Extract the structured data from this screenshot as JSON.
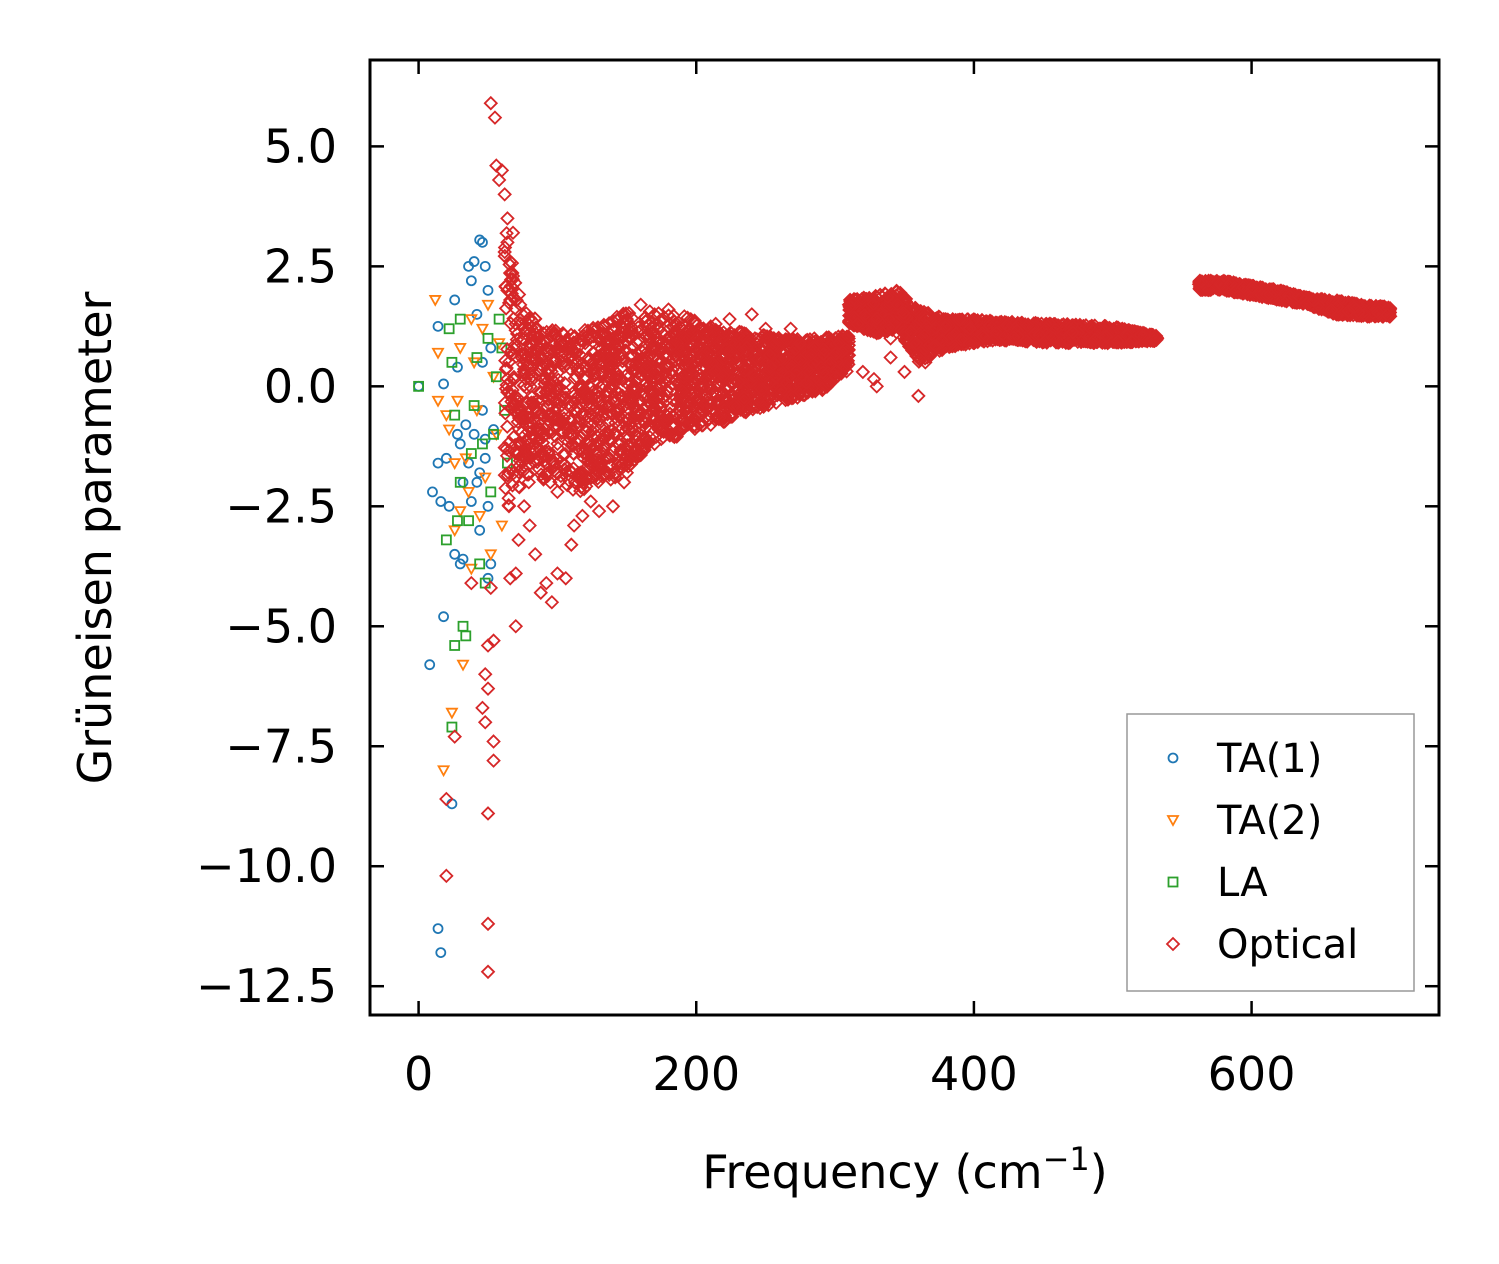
{
  "chart_data": {
    "type": "scatter",
    "title": "",
    "xlabel_main": "Frequency (cm",
    "xlabel_sup": "−1",
    "xlabel_tail": ")",
    "ylabel": "Grüneisen parameter",
    "xlim": [
      -35,
      735
    ],
    "ylim": [
      -13.1,
      6.8
    ],
    "xticks": [
      0,
      200,
      400,
      600
    ],
    "xtick_labels": [
      "0",
      "200",
      "400",
      "600"
    ],
    "yticks": [
      5.0,
      2.5,
      0.0,
      -2.5,
      -5.0,
      -7.5,
      -10.0,
      -12.5
    ],
    "ytick_labels": [
      "5.0",
      "2.5",
      "0.0",
      "−2.5",
      "−5.0",
      "−7.5",
      "−10.0",
      "−12.5"
    ],
    "legend_position": "lower-right",
    "series": [
      {
        "name": "TA(1)",
        "marker": "circle",
        "color": "#1f77b4",
        "points": [
          [
            0,
            0
          ],
          [
            8,
            -5.8
          ],
          [
            14,
            -11.3
          ],
          [
            16,
            -11.8
          ],
          [
            24,
            -8.7
          ],
          [
            18,
            -4.8
          ],
          [
            10,
            -2.2
          ],
          [
            14,
            -1.6
          ],
          [
            16,
            -2.4
          ],
          [
            18,
            0.05
          ],
          [
            20,
            -1.5
          ],
          [
            22,
            -2.5
          ],
          [
            14,
            1.25
          ],
          [
            26,
            1.8
          ],
          [
            28,
            0.4
          ],
          [
            30,
            -3.7
          ],
          [
            32,
            -3.6
          ],
          [
            26,
            -3.5
          ],
          [
            36,
            2.5
          ],
          [
            38,
            2.2
          ],
          [
            40,
            2.6
          ],
          [
            42,
            1.5
          ],
          [
            44,
            3.05
          ],
          [
            46,
            3.0
          ],
          [
            48,
            2.5
          ],
          [
            50,
            2.0
          ],
          [
            40,
            -1.0
          ],
          [
            42,
            -2.0
          ],
          [
            44,
            -3.0
          ],
          [
            46,
            -0.5
          ],
          [
            48,
            -1.5
          ],
          [
            50,
            -2.5
          ],
          [
            52,
            -3.7
          ],
          [
            30,
            -1.2
          ],
          [
            32,
            -2.0
          ],
          [
            34,
            -0.8
          ],
          [
            36,
            -1.6
          ],
          [
            38,
            -2.4
          ],
          [
            28,
            -1.0
          ],
          [
            50,
            -4.0
          ],
          [
            52,
            0.8
          ],
          [
            54,
            -0.9
          ],
          [
            46,
            0.5
          ],
          [
            44,
            -1.8
          ],
          [
            48,
            -1.1
          ]
        ]
      },
      {
        "name": "TA(2)",
        "marker": "triangle-down",
        "color": "#ff7f0e",
        "points": [
          [
            12,
            1.8
          ],
          [
            14,
            0.7
          ],
          [
            14,
            -0.3
          ],
          [
            18,
            -8.0
          ],
          [
            20,
            -0.6
          ],
          [
            24,
            -6.8
          ],
          [
            26,
            -3.0
          ],
          [
            28,
            -0.3
          ],
          [
            32,
            -5.8
          ],
          [
            22,
            -0.9
          ],
          [
            30,
            0.8
          ],
          [
            34,
            -1.5
          ],
          [
            36,
            -2.2
          ],
          [
            38,
            -3.8
          ],
          [
            40,
            0.5
          ],
          [
            42,
            -0.5
          ],
          [
            44,
            -2.7
          ],
          [
            46,
            1.2
          ],
          [
            48,
            -1.9
          ],
          [
            50,
            1.7
          ],
          [
            52,
            -3.5
          ],
          [
            54,
            0.2
          ],
          [
            56,
            -1.0
          ],
          [
            58,
            0.9
          ],
          [
            60,
            -2.9
          ],
          [
            38,
            1.4
          ],
          [
            26,
            -1.6
          ],
          [
            30,
            -2.6
          ]
        ]
      },
      {
        "name": "LA",
        "marker": "square",
        "color": "#2ca02c",
        "points": [
          [
            0,
            0
          ],
          [
            20,
            -3.2
          ],
          [
            24,
            -7.1
          ],
          [
            26,
            -5.4
          ],
          [
            28,
            -2.8
          ],
          [
            30,
            1.4
          ],
          [
            32,
            -5.0
          ],
          [
            34,
            -5.2
          ],
          [
            22,
            1.2
          ],
          [
            24,
            0.5
          ],
          [
            26,
            -0.6
          ],
          [
            36,
            -2.8
          ],
          [
            38,
            -1.4
          ],
          [
            40,
            -0.4
          ],
          [
            42,
            0.6
          ],
          [
            44,
            -3.7
          ],
          [
            48,
            -4.1
          ],
          [
            50,
            1.0
          ],
          [
            52,
            -2.2
          ],
          [
            54,
            -1.0
          ],
          [
            56,
            0.2
          ],
          [
            58,
            1.4
          ],
          [
            60,
            0.8
          ],
          [
            62,
            -0.5
          ],
          [
            64,
            -1.6
          ],
          [
            30,
            -2.0
          ],
          [
            46,
            -1.2
          ]
        ]
      },
      {
        "name": "Optical",
        "marker": "diamond",
        "color": "#d62728",
        "points": [
          [
            52,
            5.9
          ],
          [
            55,
            5.6
          ],
          [
            56,
            4.6
          ],
          [
            60,
            4.5
          ],
          [
            58,
            4.3
          ],
          [
            62,
            4.0
          ],
          [
            64,
            3.5
          ],
          [
            20,
            -8.6
          ],
          [
            20,
            -10.2
          ],
          [
            26,
            -7.3
          ],
          [
            38,
            -4.1
          ],
          [
            52,
            -4.2
          ],
          [
            50,
            -5.4
          ],
          [
            54,
            -5.3
          ],
          [
            48,
            -6.0
          ],
          [
            50,
            -6.3
          ],
          [
            46,
            -6.7
          ],
          [
            48,
            -7.0
          ],
          [
            54,
            -7.4
          ],
          [
            54,
            -7.8
          ],
          [
            50,
            -8.9
          ],
          [
            50,
            -11.2
          ],
          [
            50,
            -12.2
          ],
          [
            70,
            -5.0
          ],
          [
            66,
            -4.0
          ],
          [
            70,
            -3.9
          ],
          [
            72,
            -3.2
          ],
          [
            76,
            -2.5
          ],
          [
            80,
            -2.9
          ],
          [
            88,
            -4.3
          ],
          [
            92,
            -4.1
          ],
          [
            96,
            -4.5
          ],
          [
            100,
            -3.9
          ],
          [
            106,
            -4.0
          ],
          [
            84,
            -3.5
          ],
          [
            110,
            -3.3
          ],
          [
            112,
            -2.9
          ],
          [
            80,
            -1.2
          ],
          [
            90,
            -1.9
          ],
          [
            100,
            -2.2
          ],
          [
            118,
            -2.7
          ],
          [
            124,
            -2.4
          ],
          [
            130,
            -2.6
          ],
          [
            140,
            -2.5
          ],
          [
            148,
            -2.0
          ],
          [
            150,
            -1.8
          ],
          [
            160,
            -1.4
          ],
          [
            170,
            -1.2
          ],
          [
            180,
            -1.0
          ],
          [
            190,
            -0.9
          ],
          [
            200,
            -0.6
          ],
          [
            210,
            -0.4
          ],
          [
            220,
            -0.5
          ],
          [
            230,
            -0.3
          ],
          [
            240,
            0.2
          ],
          [
            250,
            -0.2
          ],
          [
            260,
            0.1
          ],
          [
            270,
            -0.1
          ],
          [
            280,
            0.4
          ],
          [
            290,
            0.6
          ],
          [
            300,
            0.9
          ],
          [
            310,
            1.7
          ],
          [
            320,
            1.4
          ],
          [
            330,
            1.6
          ],
          [
            340,
            1.9
          ],
          [
            350,
            1.5
          ],
          [
            360,
            1.3
          ],
          [
            370,
            1.0
          ],
          [
            380,
            1.1
          ],
          [
            390,
            1.2
          ],
          [
            400,
            1.3
          ],
          [
            420,
            1.2
          ],
          [
            440,
            1.1
          ],
          [
            460,
            1.1
          ],
          [
            480,
            1.1
          ],
          [
            500,
            1.1
          ],
          [
            520,
            1.05
          ],
          [
            532,
            1.0
          ],
          [
            320,
            0.3
          ],
          [
            330,
            0.0
          ],
          [
            340,
            0.6
          ],
          [
            350,
            0.3
          ],
          [
            360,
            -0.2
          ],
          [
            328,
            0.15
          ],
          [
            355,
            0.8
          ],
          [
            365,
            0.5
          ],
          [
            340,
            1.0
          ],
          [
            250,
            1.2
          ],
          [
            260,
            0.9
          ],
          [
            268,
            1.2
          ],
          [
            240,
            1.5
          ],
          [
            224,
            1.4
          ],
          [
            214,
            1.3
          ],
          [
            200,
            0.7
          ],
          [
            190,
            1.2
          ],
          [
            180,
            1.6
          ],
          [
            170,
            1.5
          ],
          [
            160,
            1.7
          ],
          [
            150,
            1.4
          ],
          [
            140,
            1.2
          ],
          [
            130,
            1.0
          ],
          [
            120,
            0.9
          ],
          [
            110,
            0.8
          ],
          [
            100,
            1.0
          ],
          [
            90,
            1.1
          ],
          [
            80,
            0.9
          ],
          [
            70,
            1.3
          ],
          [
            66,
            1.8
          ],
          [
            68,
            2.3
          ],
          [
            66,
            2.6
          ],
          [
            64,
            3.0
          ],
          [
            68,
            3.2
          ],
          [
            62,
            2.8
          ],
          [
            64,
            2.0
          ]
        ]
      }
    ],
    "optical_bands": {
      "band1": {
        "f": [
          62,
          75,
          95,
          115,
          140,
          165,
          190,
          215,
          240,
          265,
          290,
          310
        ],
        "gmin": [
          -2.8,
          -2.0,
          -2.0,
          -2.2,
          -2.0,
          -1.3,
          -1.0,
          -0.8,
          -0.5,
          -0.3,
          -0.1,
          0.3
        ],
        "gmax": [
          3.5,
          1.6,
          1.2,
          1.1,
          1.5,
          1.6,
          1.5,
          1.2,
          1.1,
          1.0,
          1.0,
          1.1
        ]
      },
      "band2": {
        "f": [
          310,
          330,
          345,
          360,
          380,
          400,
          420,
          460,
          500,
          532
        ],
        "gmin": [
          1.3,
          1.1,
          1.2,
          0.5,
          0.8,
          0.9,
          0.95,
          0.9,
          0.9,
          0.95
        ],
        "gmax": [
          1.8,
          1.9,
          2.0,
          1.6,
          1.4,
          1.4,
          1.35,
          1.3,
          1.25,
          1.05
        ]
      },
      "band3": {
        "f": [
          562,
          580,
          600,
          620,
          640,
          660,
          680,
          700
        ],
        "gmin": [
          2.0,
          2.0,
          1.9,
          1.8,
          1.7,
          1.5,
          1.45,
          1.45
        ],
        "gmax": [
          2.2,
          2.2,
          2.1,
          2.0,
          1.85,
          1.8,
          1.7,
          1.65
        ]
      }
    }
  }
}
